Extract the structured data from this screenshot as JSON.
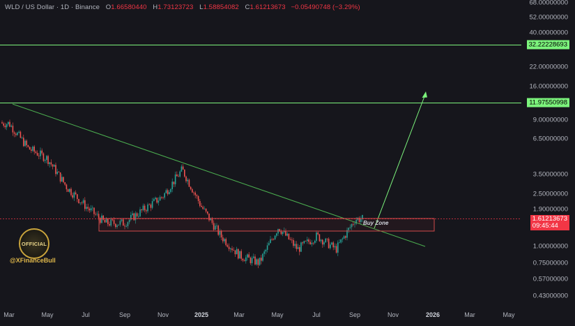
{
  "header": {
    "pair": "WLD / US Dollar · 1D · Binance",
    "open_label": "O",
    "open": "1.66580440",
    "high_label": "H",
    "high": "1.73123723",
    "low_label": "L",
    "low": "1.58854082",
    "close_label": "C",
    "close": "1.61213673",
    "change": "−0.05490748 (−3.29%)"
  },
  "price_axis": [
    "68.00000000",
    "52.00000000",
    "40.00000000",
    "22.00000000",
    "16.00000000",
    "9.00000000",
    "6.50000000",
    "3.50000000",
    "2.50000000",
    "1.90000000",
    "1.00000000",
    "0.75000000",
    "0.57000000",
    "0.43000000"
  ],
  "time_axis": [
    "Mar",
    "May",
    "Jul",
    "Sep",
    "Nov",
    "2025",
    "Mar",
    "May",
    "Jul",
    "Sep",
    "Nov",
    "2026",
    "Mar",
    "May"
  ],
  "level_labels": {
    "top": "32.22228693",
    "middle": "11.97550998"
  },
  "current_price": {
    "price": "1.61213673",
    "countdown": "09:45:44"
  },
  "annotations": {
    "buy_zone": "Buy Zone",
    "badge": "OFFICIAL",
    "handle": "@XFinanceBull"
  },
  "colors": {
    "up": "#26a69a",
    "down": "#ef5350",
    "level_line": "#7cf47c",
    "trend_line": "#4caf50",
    "buy_zone_border": "#d04a4a"
  },
  "chart_data": {
    "type": "candlestick",
    "symbol": "WLD / US Dollar",
    "interval": "1D",
    "exchange": "Binance",
    "y_scale": "log",
    "horizontal_levels": [
      32.22228693,
      11.97550998
    ],
    "buy_zone": [
      1.3,
      1.7
    ],
    "last_price": 1.61213673,
    "approx_closes": [
      {
        "date": "2024-03",
        "price": 8.5
      },
      {
        "date": "2024-04",
        "price": 5.5
      },
      {
        "date": "2024-05",
        "price": 4.6
      },
      {
        "date": "2024-06",
        "price": 2.8
      },
      {
        "date": "2024-07",
        "price": 2.0
      },
      {
        "date": "2024-08",
        "price": 1.5
      },
      {
        "date": "2024-09",
        "price": 1.5
      },
      {
        "date": "2024-10",
        "price": 1.9
      },
      {
        "date": "2024-11",
        "price": 2.4
      },
      {
        "date": "2024-12",
        "price": 3.8
      },
      {
        "date": "2025-01",
        "price": 2.0
      },
      {
        "date": "2025-02",
        "price": 1.2
      },
      {
        "date": "2025-03",
        "price": 0.85
      },
      {
        "date": "2025-04",
        "price": 0.75
      },
      {
        "date": "2025-05",
        "price": 1.4
      },
      {
        "date": "2025-06",
        "price": 0.95
      },
      {
        "date": "2025-07",
        "price": 1.2
      },
      {
        "date": "2025-08",
        "price": 0.95
      },
      {
        "date": "2025-09",
        "price": 1.61
      }
    ]
  }
}
